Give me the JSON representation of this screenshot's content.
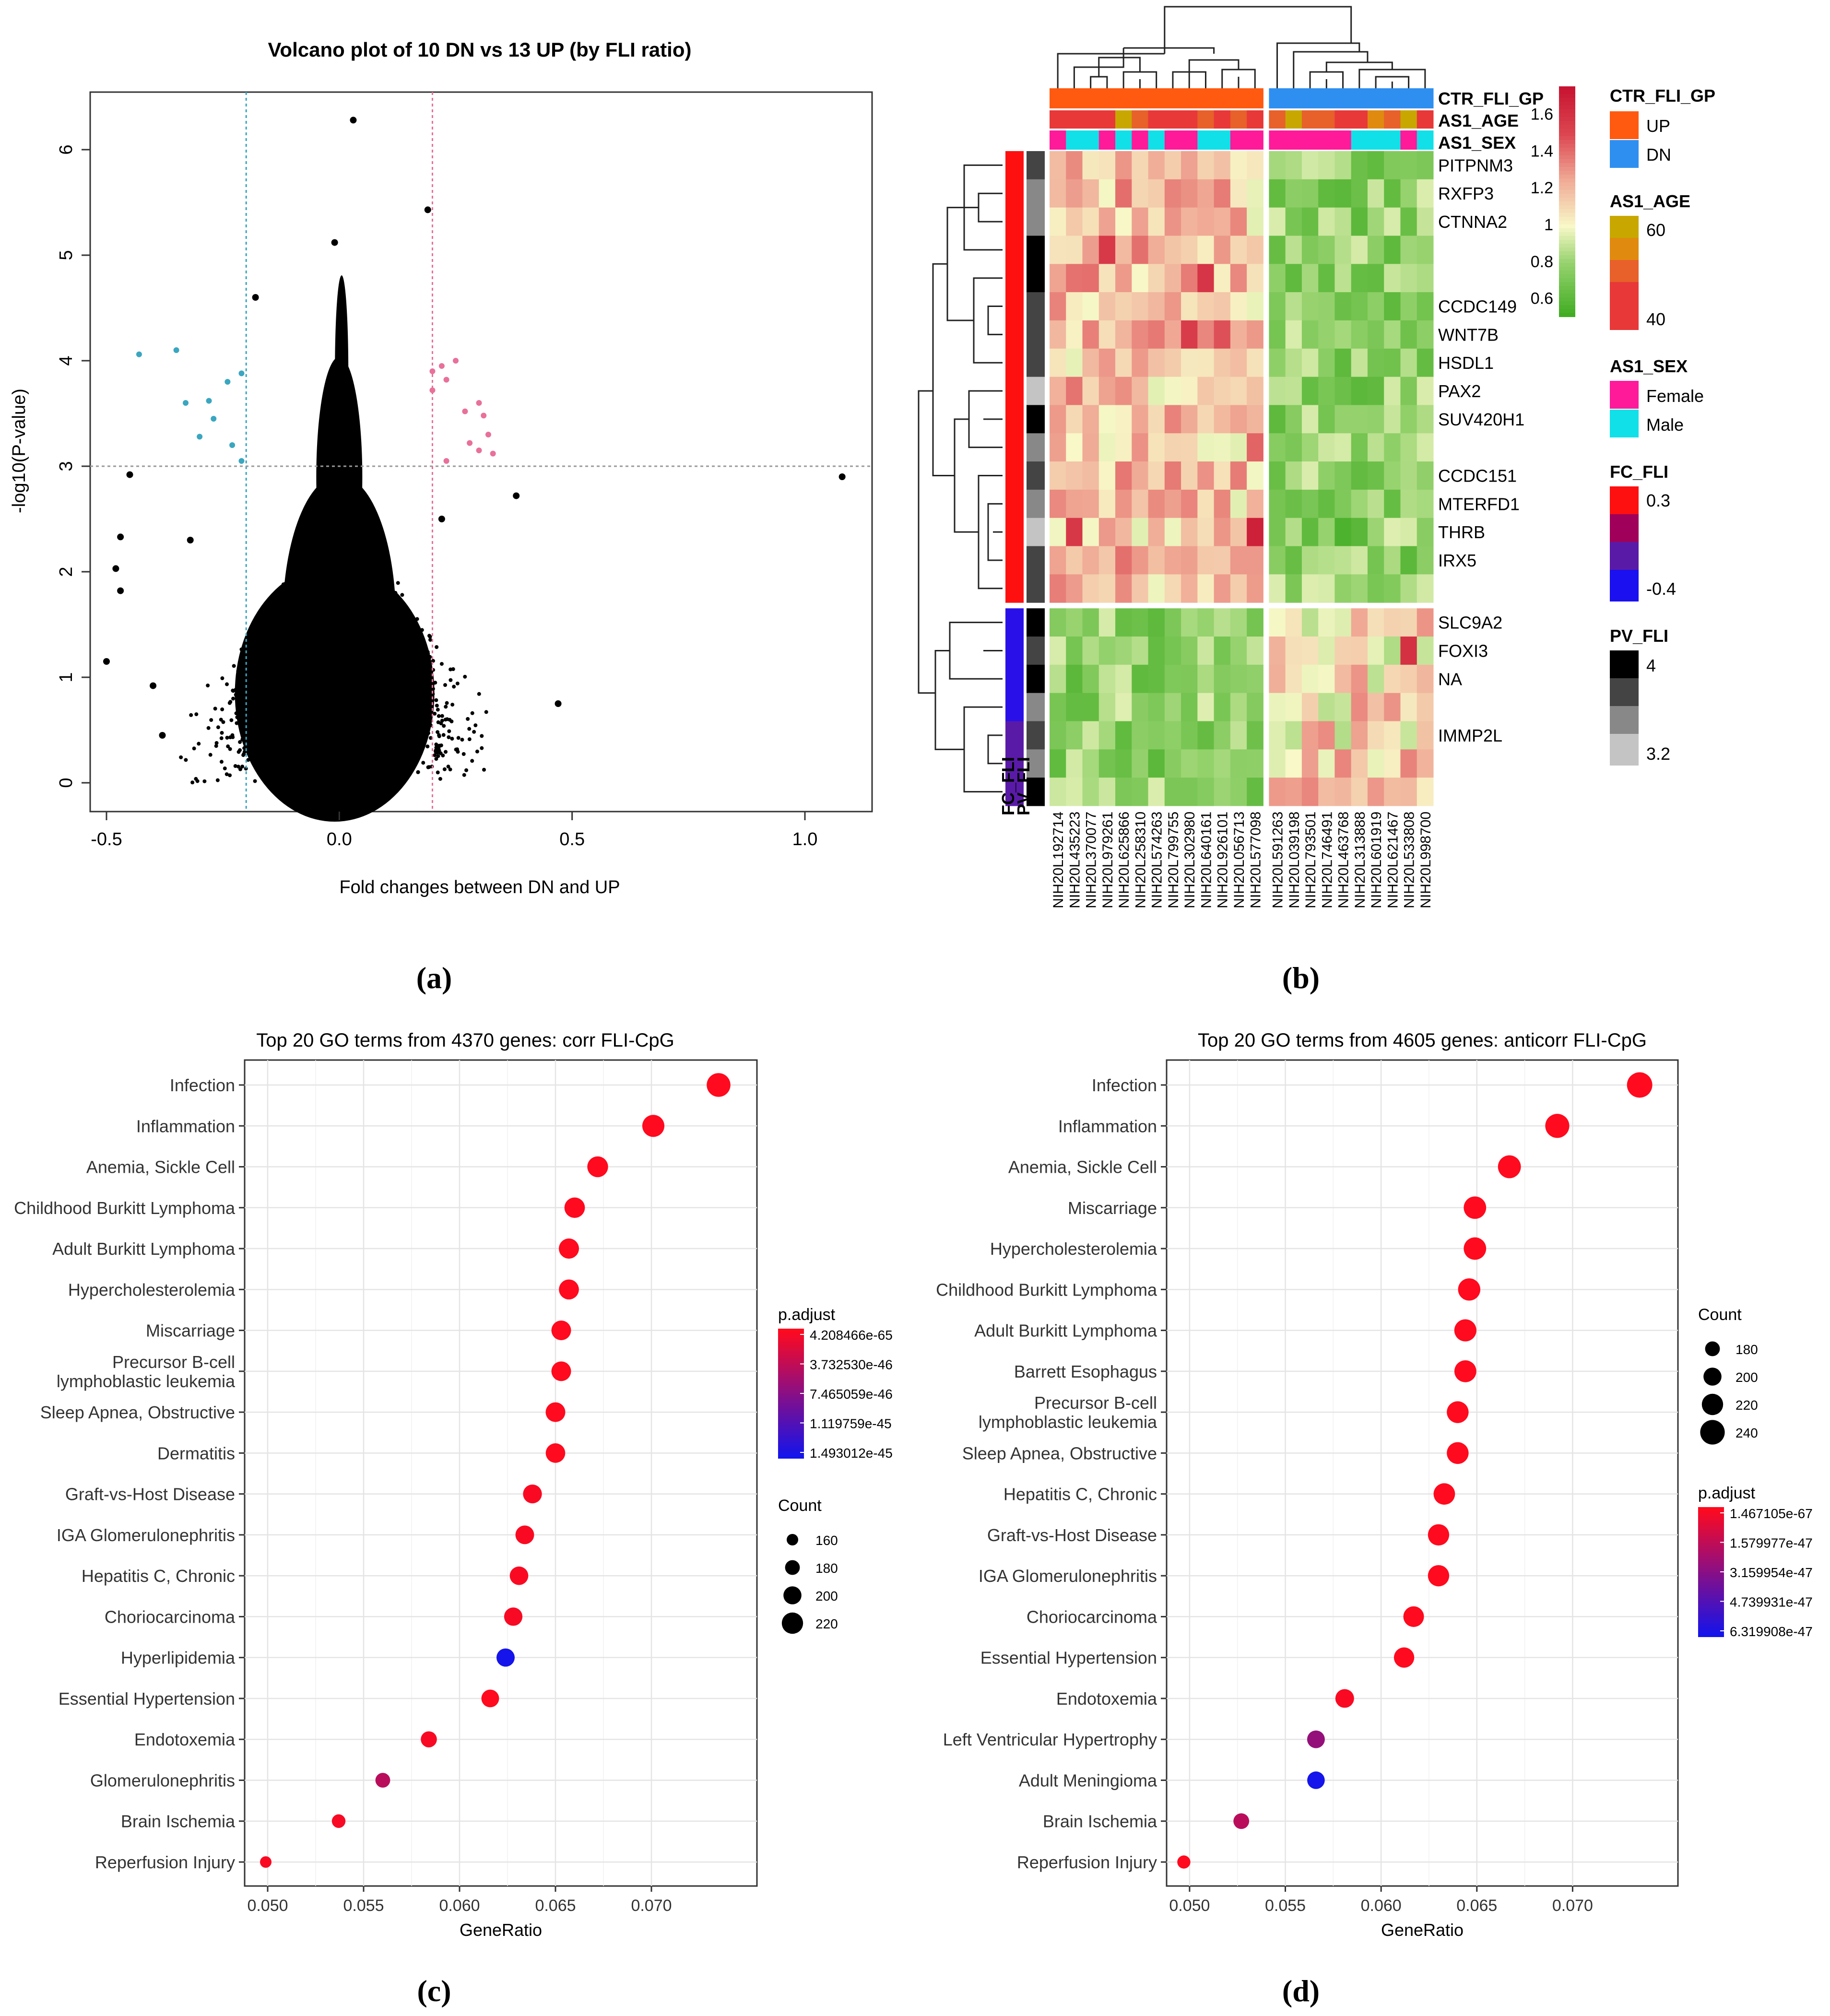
{
  "panel_labels": [
    "(a)",
    "(b)",
    "(c)",
    "(d)"
  ],
  "volcano": {
    "type": "scatter",
    "title": "Volcano plot of 10 DN vs 13 UP (by FLI ratio)",
    "xlabel": "Fold changes between DN and UP",
    "ylabel": "-log10(P-value)",
    "xlim": [
      -0.5,
      1.1
    ],
    "ylim": [
      0,
      6.5
    ],
    "x_ticks": [
      -0.5,
      0.0,
      0.5,
      1.0
    ],
    "x_tick_labels": [
      "-0.5",
      "0.0",
      "0.5",
      "1.0"
    ],
    "y_ticks": [
      0,
      1,
      2,
      3,
      4,
      5,
      6
    ],
    "y_tick_labels": [
      "0",
      "1",
      "2",
      "3",
      "4",
      "5",
      "6"
    ],
    "thresholds": {
      "x_low": -0.2,
      "x_high": 0.2,
      "y": 3.0
    },
    "colors": {
      "down": "#3aa6c0",
      "up": "#e8709a",
      "bulk": "#000000"
    },
    "down_points": [
      [
        -0.43,
        4.06
      ],
      [
        -0.35,
        4.1
      ],
      [
        -0.33,
        3.6
      ],
      [
        -0.28,
        3.62
      ],
      [
        -0.3,
        3.28
      ],
      [
        -0.23,
        3.2
      ],
      [
        -0.21,
        3.88
      ],
      [
        -0.21,
        3.05
      ],
      [
        -0.24,
        3.8
      ],
      [
        -0.27,
        3.45
      ]
    ],
    "up_points": [
      [
        0.2,
        3.9
      ],
      [
        0.22,
        3.95
      ],
      [
        0.25,
        4.0
      ],
      [
        0.2,
        3.72
      ],
      [
        0.23,
        3.82
      ],
      [
        0.27,
        3.52
      ],
      [
        0.3,
        3.6
      ],
      [
        0.31,
        3.48
      ],
      [
        0.32,
        3.3
      ],
      [
        0.28,
        3.22
      ],
      [
        0.3,
        3.15
      ],
      [
        0.33,
        3.12
      ],
      [
        0.23,
        3.05
      ]
    ],
    "outliers": [
      [
        0.03,
        6.28
      ],
      [
        0.19,
        5.43
      ],
      [
        -0.01,
        5.12
      ],
      [
        -0.18,
        4.6
      ],
      [
        1.08,
        2.9
      ],
      [
        -0.45,
        2.92
      ],
      [
        -0.47,
        2.33
      ],
      [
        -0.48,
        2.03
      ],
      [
        -0.47,
        1.82
      ],
      [
        -0.5,
        1.15
      ],
      [
        -0.4,
        0.92
      ],
      [
        -0.38,
        0.45
      ],
      [
        0.47,
        0.75
      ],
      [
        0.21,
        0.3
      ],
      [
        0.22,
        2.5
      ],
      [
        0.38,
        2.72
      ],
      [
        -0.32,
        2.3
      ]
    ]
  },
  "heatmap": {
    "type": "heatmap",
    "column_annotations": [
      "CTR_FLI_GP",
      "AS1_AGE",
      "AS1_SEX"
    ],
    "row_annotations": [
      "PV_FLI",
      "FC_FLI"
    ],
    "columns": [
      "NIH20L192714",
      "NIH20L435223",
      "NIH20L370077",
      "NIH20L979261",
      "NIH20L625866",
      "NIH20L258310",
      "NIH20L574263",
      "NIH20L799755",
      "NIH20L302980",
      "NIH20L640161",
      "NIH20L926101",
      "NIH20L056713",
      "NIH20L577098",
      "NIH20L591263",
      "NIH20L039198",
      "NIH20L793501",
      "NIH20L746491",
      "NIH20L463768",
      "NIH20L313888",
      "NIH20L601919",
      "NIH20L621467",
      "NIH20L533808",
      "NIH20L998700"
    ],
    "gene_labels": [
      {
        "row": 0,
        "name": "PITPNM3"
      },
      {
        "row": 1,
        "name": "RXFP3"
      },
      {
        "row": 2,
        "name": "CTNNA2"
      },
      {
        "row": 5,
        "name": "CCDC149"
      },
      {
        "row": 6,
        "name": "WNT7B"
      },
      {
        "row": 7,
        "name": "HSDL1"
      },
      {
        "row": 8,
        "name": "PAX2"
      },
      {
        "row": 9,
        "name": "SUV420H1"
      },
      {
        "row": 11,
        "name": "CCDC151"
      },
      {
        "row": 12,
        "name": "MTERFD1"
      },
      {
        "row": 13,
        "name": "THRB"
      },
      {
        "row": 14,
        "name": "IRX5"
      },
      {
        "row": 16,
        "name": "SLC9A2"
      },
      {
        "row": 17,
        "name": "FOXI3"
      },
      {
        "row": 18,
        "name": "NA"
      },
      {
        "row": 20,
        "name": "IMMP2L"
      }
    ],
    "n_rows": 23,
    "up_rows": 16,
    "n_up_cols": 13,
    "colorbar": {
      "ticks": [
        1.6,
        1.4,
        1.2,
        1.0,
        0.8,
        0.6
      ],
      "tick_labels": [
        "1.6",
        "1.4",
        "1.2",
        "1",
        "0.8",
        "0.6"
      ],
      "range": [
        0.5,
        1.75
      ]
    },
    "legends": {
      "ctr": {
        "title": "CTR_FLI_GP",
        "items": [
          {
            "label": "UP",
            "color": "#ff5a10"
          },
          {
            "label": "DN",
            "color": "#2f8ff0"
          }
        ]
      },
      "age": {
        "title": "AS1_AGE",
        "labels": [
          "60",
          "40"
        ],
        "colors": [
          "#c8a800",
          "#e08a10",
          "#e8602a",
          "#e83838"
        ]
      },
      "sex": {
        "title": "AS1_SEX",
        "items": [
          {
            "label": "Female",
            "color": "#ff1a9a"
          },
          {
            "label": "Male",
            "color": "#12e0e8"
          }
        ]
      },
      "fc": {
        "title": "FC_FLI",
        "labels": [
          "0.3",
          "-0.4"
        ],
        "colors": [
          "#ff1010",
          "#a0005a",
          "#5a1aa8",
          "#1a10f0"
        ]
      },
      "pv": {
        "title": "PV_FLI",
        "labels": [
          "4",
          "3.2"
        ],
        "colors": [
          "#000000",
          "#444444",
          "#888888",
          "#c4c4c4"
        ]
      }
    },
    "age_values": [
      42,
      40,
      41,
      40,
      58,
      44,
      43,
      41,
      40,
      44,
      40,
      46,
      43,
      44,
      56,
      44,
      48,
      40,
      41,
      52,
      45,
      58,
      42
    ],
    "sex_values": [
      "F",
      "M",
      "M",
      "F",
      "M",
      "F",
      "M",
      "F",
      "F",
      "M",
      "M",
      "F",
      "F",
      "F",
      "F",
      "F",
      "F",
      "F",
      "M",
      "M",
      "M",
      "F",
      "M"
    ],
    "pv_values": [
      3.6,
      3.5,
      3.4,
      4.0,
      4.0,
      3.8,
      3.8,
      3.6,
      3.3,
      4.0,
      3.5,
      3.7,
      3.4,
      3.3,
      3.6,
      3.8,
      4.0,
      3.7,
      4.0,
      3.5,
      3.8,
      3.4,
      3.9
    ],
    "fc_values": [
      0.3,
      0.28,
      0.3,
      0.29,
      0.27,
      0.28,
      0.3,
      0.29,
      0.28,
      0.3,
      0.27,
      0.28,
      0.29,
      0.3,
      0.28,
      0.27,
      -0.4,
      -0.38,
      -0.37,
      -0.38,
      -0.36,
      -0.35,
      -0.34
    ]
  },
  "go_c": {
    "type": "scatter",
    "title": "Top 20 GO terms from 4370 genes:     corr FLI-CpG",
    "xlabel": "GeneRatio",
    "xlim": [
      0.0488,
      0.0755
    ],
    "x_ticks": [
      0.05,
      0.055,
      0.06,
      0.065,
      0.07
    ],
    "x_tick_labels": [
      "0.050",
      "0.055",
      "0.060",
      "0.065",
      "0.070"
    ],
    "terms": [
      "Infection",
      "Inflammation",
      "Anemia, Sickle Cell",
      "Childhood Burkitt Lymphoma",
      "Adult Burkitt Lymphoma",
      "Hypercholesterolemia",
      "Miscarriage",
      "Precursor B-cell\nlymphoblastic leukemia",
      "Sleep Apnea, Obstructive",
      "Dermatitis",
      "Graft-vs-Host Disease",
      "IGA Glomerulonephritis",
      "Hepatitis C, Chronic",
      "Choriocarcinoma",
      "Hyperlipidemia",
      "Essential Hypertension",
      "Endotoxemia",
      "Glomerulonephritis",
      "Brain Ischemia",
      "Reperfusion Injury"
    ],
    "gene_ratio": [
      0.0735,
      0.0701,
      0.0672,
      0.066,
      0.0657,
      0.0657,
      0.0653,
      0.0653,
      0.065,
      0.065,
      0.0638,
      0.0634,
      0.0631,
      0.0628,
      0.0624,
      0.0616,
      0.0584,
      0.056,
      0.0537,
      0.0499
    ],
    "count": [
      235,
      225,
      217,
      215,
      213,
      212,
      210,
      210,
      210,
      209,
      205,
      204,
      203,
      202,
      201,
      198,
      188,
      180,
      173,
      160
    ],
    "color_t": [
      0.0,
      0.0,
      0.0,
      0.0,
      0.0,
      0.0,
      0.0,
      0.0,
      0.0,
      0.0,
      0.02,
      0.02,
      0.02,
      0.03,
      1.0,
      0.0,
      0.03,
      0.3,
      0.03,
      0.02
    ],
    "padjust_legend": {
      "title": "p.adjust",
      "labels": [
        "4.208466e-65",
        "3.732530e-46",
        "7.465059e-46",
        "1.119759e-45",
        "1.493012e-45"
      ]
    },
    "count_legend": {
      "title": "Count",
      "labels": [
        "160",
        "180",
        "200",
        "220"
      ],
      "values": [
        160,
        180,
        200,
        220
      ]
    }
  },
  "go_d": {
    "type": "scatter",
    "title": "Top 20 GO terms from 4605 genes: anticorr FLI-CpG",
    "xlabel": "GeneRatio",
    "xlim": [
      0.0488,
      0.0755
    ],
    "x_ticks": [
      0.05,
      0.055,
      0.06,
      0.065,
      0.07
    ],
    "x_tick_labels": [
      "0.050",
      "0.055",
      "0.060",
      "0.065",
      "0.070"
    ],
    "terms": [
      "Infection",
      "Inflammation",
      "Anemia, Sickle Cell",
      "Miscarriage",
      "Hypercholesterolemia",
      "Childhood Burkitt Lymphoma",
      "Adult Burkitt Lymphoma",
      "Barrett Esophagus",
      "Precursor B-cell\nlymphoblastic leukemia",
      "Sleep Apnea, Obstructive",
      "Hepatitis C, Chronic",
      "Graft-vs-Host Disease",
      "IGA Glomerulonephritis",
      "Choriocarcinoma",
      "Essential Hypertension",
      "Endotoxemia",
      "Left Ventricular Hypertrophy",
      "Adult Meningioma",
      "Brain Ischemia",
      "Reperfusion Injury"
    ],
    "gene_ratio": [
      0.0735,
      0.0692,
      0.0667,
      0.0649,
      0.0649,
      0.0646,
      0.0644,
      0.0644,
      0.064,
      0.064,
      0.0633,
      0.063,
      0.063,
      0.0617,
      0.0612,
      0.0581,
      0.0566,
      0.0566,
      0.0527,
      0.0497
    ],
    "count": [
      245,
      237,
      230,
      227,
      227,
      226,
      225,
      224,
      223,
      223,
      221,
      220,
      220,
      216,
      214,
      204,
      198,
      197,
      186,
      170
    ],
    "color_t": [
      0.0,
      0.0,
      0.0,
      0.0,
      0.0,
      0.0,
      0.0,
      0.0,
      0.0,
      0.0,
      0.0,
      0.0,
      0.0,
      0.0,
      0.0,
      0.02,
      0.45,
      1.0,
      0.3,
      0.0
    ],
    "padjust_legend": {
      "title": "p.adjust",
      "labels": [
        "1.467105e-67",
        "1.579977e-47",
        "3.159954e-47",
        "4.739931e-47",
        "6.319908e-47"
      ]
    },
    "count_legend": {
      "title": "Count",
      "labels": [
        "180",
        "200",
        "220",
        "240"
      ],
      "values": [
        180,
        200,
        220,
        240
      ]
    }
  }
}
